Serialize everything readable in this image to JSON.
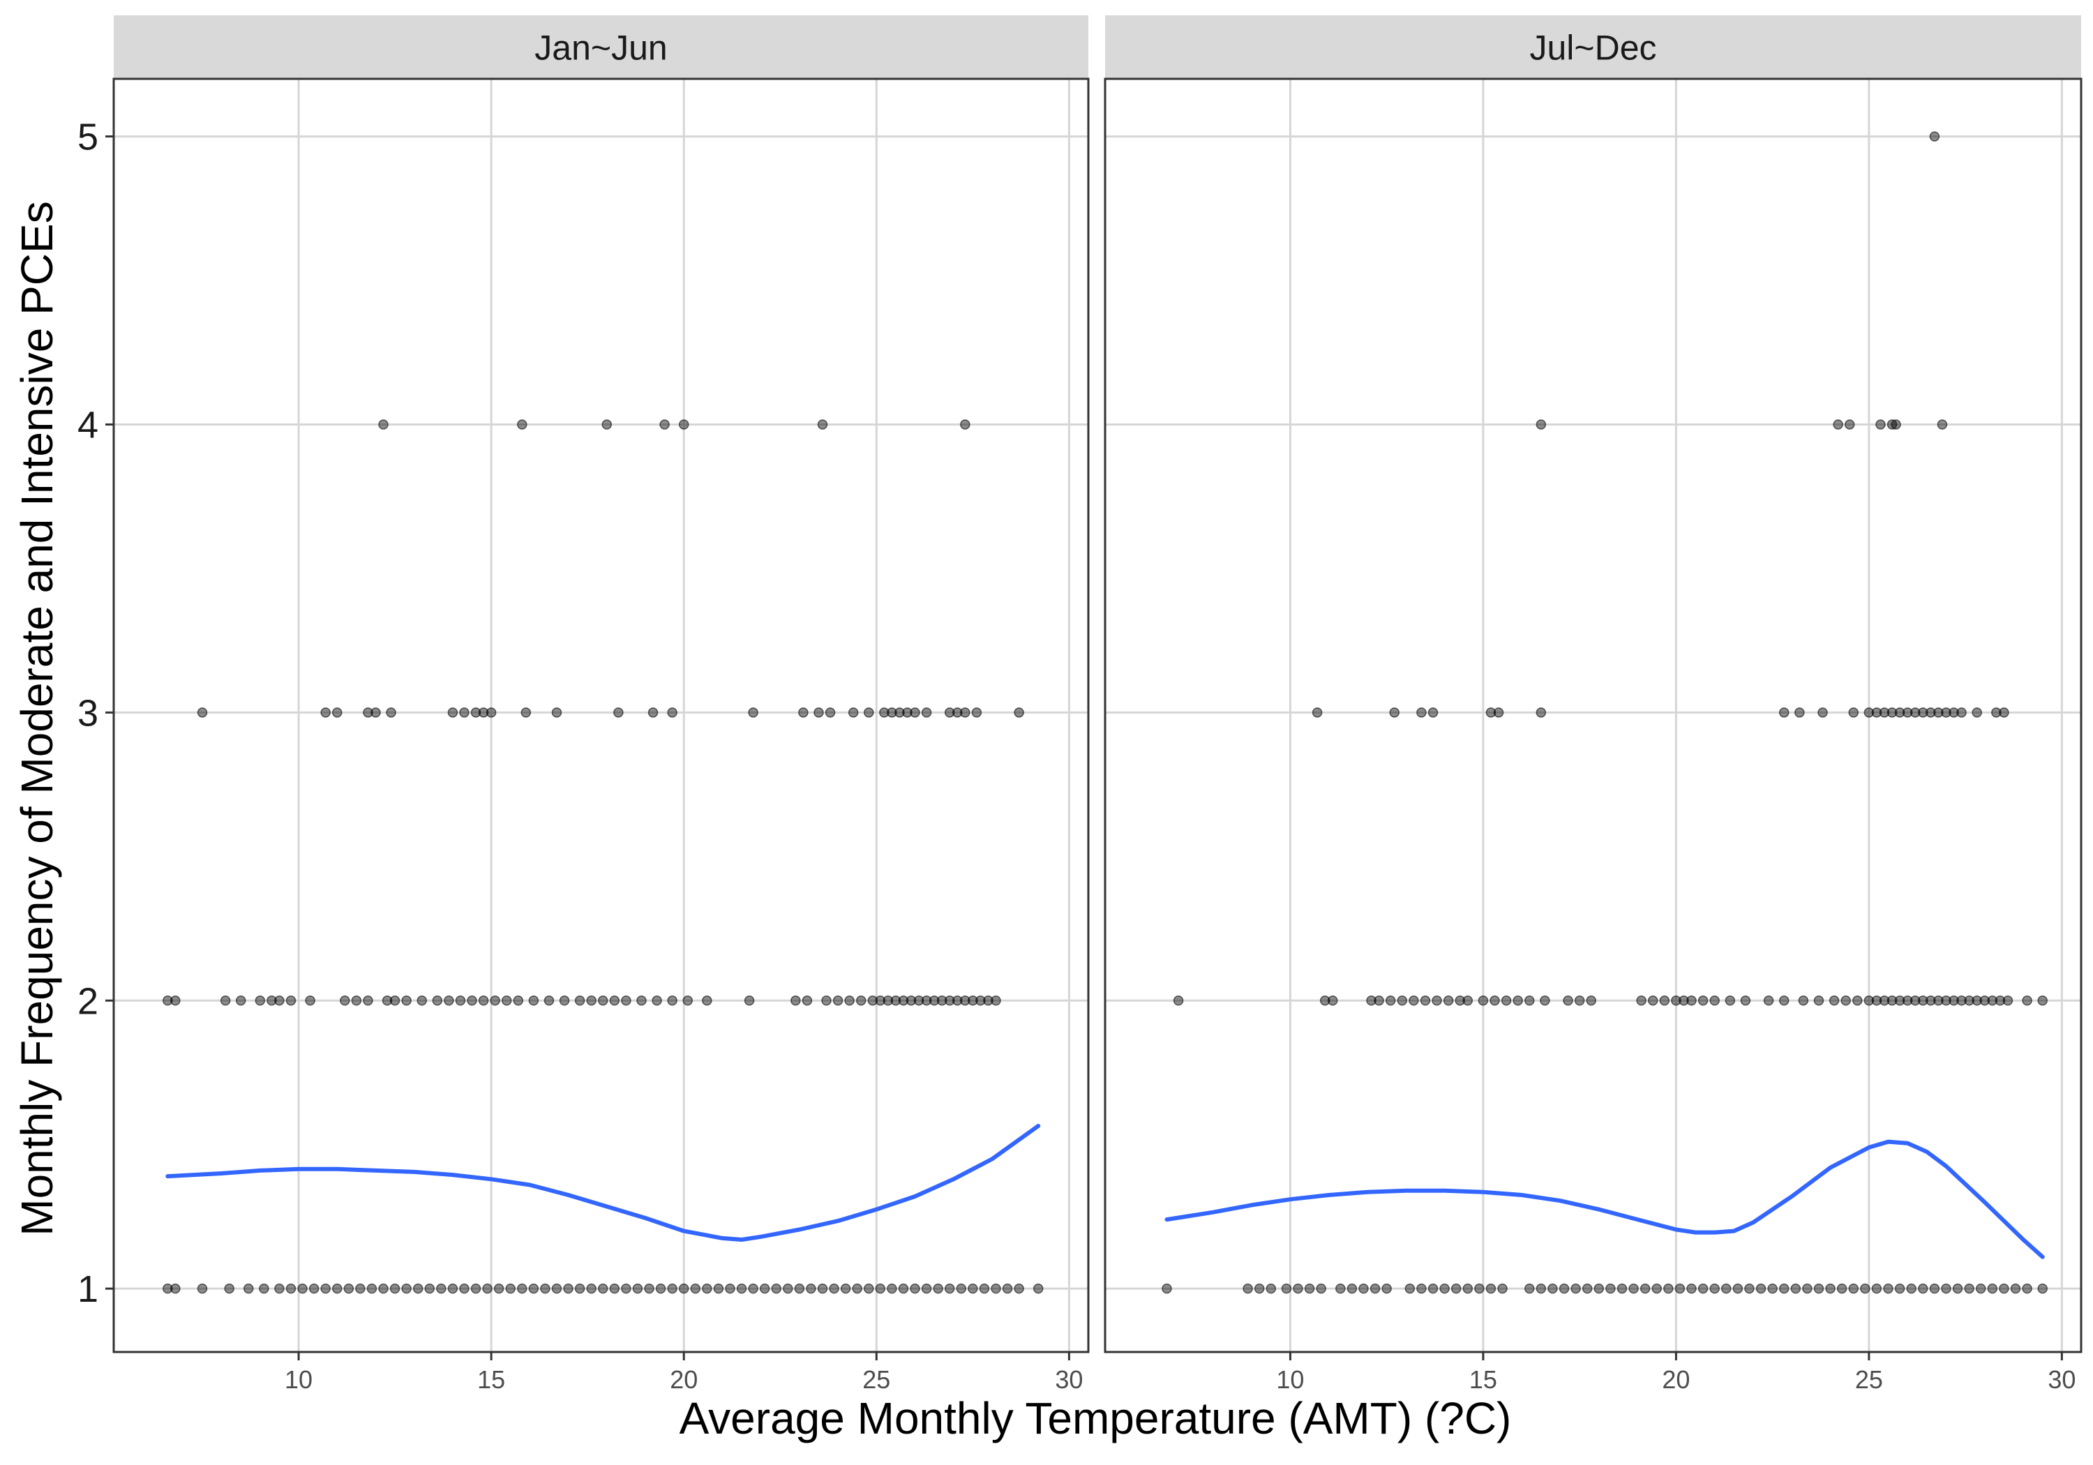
{
  "chart_data": {
    "type": "scatter",
    "xlabel": "Average Monthly Temperature (AMT) (?C)",
    "ylabel": "Monthly Frequency of Moderate and Intensive PCEs",
    "xlim": [
      5.2,
      30.5
    ],
    "ylim": [
      0.78,
      5.2
    ],
    "x_ticks": [
      10,
      15,
      20,
      25,
      30
    ],
    "y_ticks": [
      1,
      2,
      3,
      4,
      5
    ],
    "grid": true,
    "legend": "none",
    "colors": {
      "points": "#000000",
      "smooth_line": "#3366ff",
      "strip_fill": "#d9d9d9",
      "grid": "#d6d6d6",
      "panel_border": "#333333"
    },
    "panels": [
      {
        "strip_label": "Jan~Jun",
        "points": {
          "5": [],
          "4": [
            12.2,
            15.8,
            18.0,
            19.5,
            20.0,
            23.6,
            27.3
          ],
          "3": [
            7.5,
            10.7,
            11.0,
            11.8,
            12.0,
            12.4,
            14.0,
            14.3,
            14.6,
            14.8,
            15.0,
            15.9,
            16.7,
            18.3,
            19.2,
            19.7,
            21.8,
            23.1,
            23.5,
            23.8,
            24.4,
            24.8,
            25.2,
            25.4,
            25.6,
            25.8,
            26.0,
            26.3,
            26.9,
            27.1,
            27.3,
            27.6,
            28.7
          ],
          "2": [
            6.6,
            6.8,
            8.1,
            8.5,
            9.0,
            9.3,
            9.5,
            9.8,
            10.3,
            11.2,
            11.5,
            11.8,
            12.3,
            12.5,
            12.8,
            13.2,
            13.6,
            13.9,
            14.2,
            14.5,
            14.8,
            15.1,
            15.4,
            15.7,
            16.1,
            16.5,
            16.9,
            17.3,
            17.6,
            17.9,
            18.2,
            18.5,
            18.9,
            19.3,
            19.7,
            20.1,
            20.6,
            21.7,
            22.9,
            23.2,
            23.7,
            24.0,
            24.3,
            24.6,
            24.9,
            25.1,
            25.3,
            25.5,
            25.7,
            25.9,
            26.1,
            26.3,
            26.5,
            26.7,
            26.9,
            27.1,
            27.3,
            27.5,
            27.7,
            27.9,
            28.1
          ],
          "1": [
            6.6,
            6.8,
            7.5,
            8.2,
            8.7,
            9.1,
            9.5,
            9.8,
            10.1,
            10.4,
            10.7,
            11.0,
            11.3,
            11.6,
            11.9,
            12.2,
            12.5,
            12.8,
            13.1,
            13.4,
            13.7,
            14.0,
            14.3,
            14.6,
            14.9,
            15.2,
            15.5,
            15.8,
            16.1,
            16.4,
            16.7,
            17.0,
            17.3,
            17.6,
            17.9,
            18.2,
            18.5,
            18.8,
            19.1,
            19.4,
            19.7,
            20.0,
            20.3,
            20.6,
            20.9,
            21.2,
            21.5,
            21.8,
            22.1,
            22.4,
            22.7,
            23.0,
            23.3,
            23.6,
            23.9,
            24.2,
            24.5,
            24.8,
            25.1,
            25.4,
            25.7,
            26.0,
            26.3,
            26.6,
            26.9,
            27.2,
            27.5,
            27.8,
            28.1,
            28.4,
            28.7,
            29.2
          ]
        },
        "smooth": {
          "x": [
            6.6,
            8,
            9,
            10,
            11,
            12,
            13,
            14,
            15,
            16,
            17,
            18,
            19,
            20,
            21,
            21.5,
            22,
            23,
            24,
            25,
            26,
            27,
            28,
            29.2
          ],
          "y": [
            1.39,
            1.4,
            1.41,
            1.415,
            1.415,
            1.41,
            1.405,
            1.395,
            1.38,
            1.36,
            1.325,
            1.285,
            1.245,
            1.2,
            1.175,
            1.17,
            1.18,
            1.205,
            1.235,
            1.275,
            1.32,
            1.38,
            1.45,
            1.565
          ]
        }
      },
      {
        "strip_label": "Jul~Dec",
        "points": {
          "5": [
            26.7
          ],
          "4": [
            16.5,
            24.2,
            24.5,
            25.3,
            25.6,
            25.7,
            26.9
          ],
          "3": [
            10.7,
            12.7,
            13.4,
            13.7,
            15.2,
            15.4,
            16.5,
            22.8,
            23.2,
            23.8,
            24.6,
            25.0,
            25.2,
            25.4,
            25.6,
            25.8,
            26.0,
            26.2,
            26.4,
            26.6,
            26.8,
            27.0,
            27.2,
            27.4,
            27.8,
            28.3,
            28.5
          ],
          "2": [
            7.1,
            10.9,
            11.1,
            12.1,
            12.3,
            12.6,
            12.9,
            13.2,
            13.5,
            13.8,
            14.1,
            14.4,
            14.6,
            15.0,
            15.3,
            15.6,
            15.9,
            16.2,
            16.6,
            17.2,
            17.5,
            17.8,
            19.1,
            19.4,
            19.7,
            20.0,
            20.2,
            20.4,
            20.7,
            21.0,
            21.4,
            21.8,
            22.4,
            22.8,
            23.3,
            23.7,
            24.1,
            24.4,
            24.7,
            25.0,
            25.2,
            25.4,
            25.6,
            25.8,
            26.0,
            26.2,
            26.4,
            26.6,
            26.8,
            27.0,
            27.2,
            27.4,
            27.6,
            27.8,
            28.0,
            28.2,
            28.4,
            28.6,
            29.1,
            29.5
          ],
          "1": [
            6.8,
            8.9,
            9.2,
            9.5,
            9.9,
            10.2,
            10.5,
            10.8,
            11.3,
            11.6,
            11.9,
            12.2,
            12.5,
            13.1,
            13.4,
            13.7,
            14.0,
            14.3,
            14.6,
            14.9,
            15.2,
            15.5,
            16.2,
            16.5,
            16.8,
            17.1,
            17.4,
            17.7,
            18.0,
            18.3,
            18.6,
            18.9,
            19.2,
            19.5,
            19.8,
            20.1,
            20.4,
            20.7,
            21.0,
            21.3,
            21.6,
            21.9,
            22.2,
            22.5,
            22.8,
            23.1,
            23.4,
            23.7,
            24.0,
            24.3,
            24.6,
            24.9,
            25.2,
            25.5,
            25.8,
            26.1,
            26.4,
            26.7,
            27.0,
            27.3,
            27.6,
            27.9,
            28.2,
            28.5,
            28.8,
            29.1,
            29.5
          ]
        },
        "smooth": {
          "x": [
            6.8,
            8,
            9,
            10,
            11,
            12,
            13,
            14,
            15,
            16,
            17,
            18,
            19,
            20,
            20.5,
            21,
            21.5,
            22,
            23,
            24,
            25,
            25.5,
            26,
            26.5,
            27,
            28,
            29,
            29.5
          ],
          "y": [
            1.24,
            1.265,
            1.29,
            1.31,
            1.325,
            1.335,
            1.34,
            1.34,
            1.335,
            1.325,
            1.305,
            1.275,
            1.24,
            1.205,
            1.195,
            1.195,
            1.2,
            1.23,
            1.32,
            1.42,
            1.49,
            1.51,
            1.505,
            1.475,
            1.425,
            1.3,
            1.17,
            1.11
          ]
        }
      }
    ]
  }
}
